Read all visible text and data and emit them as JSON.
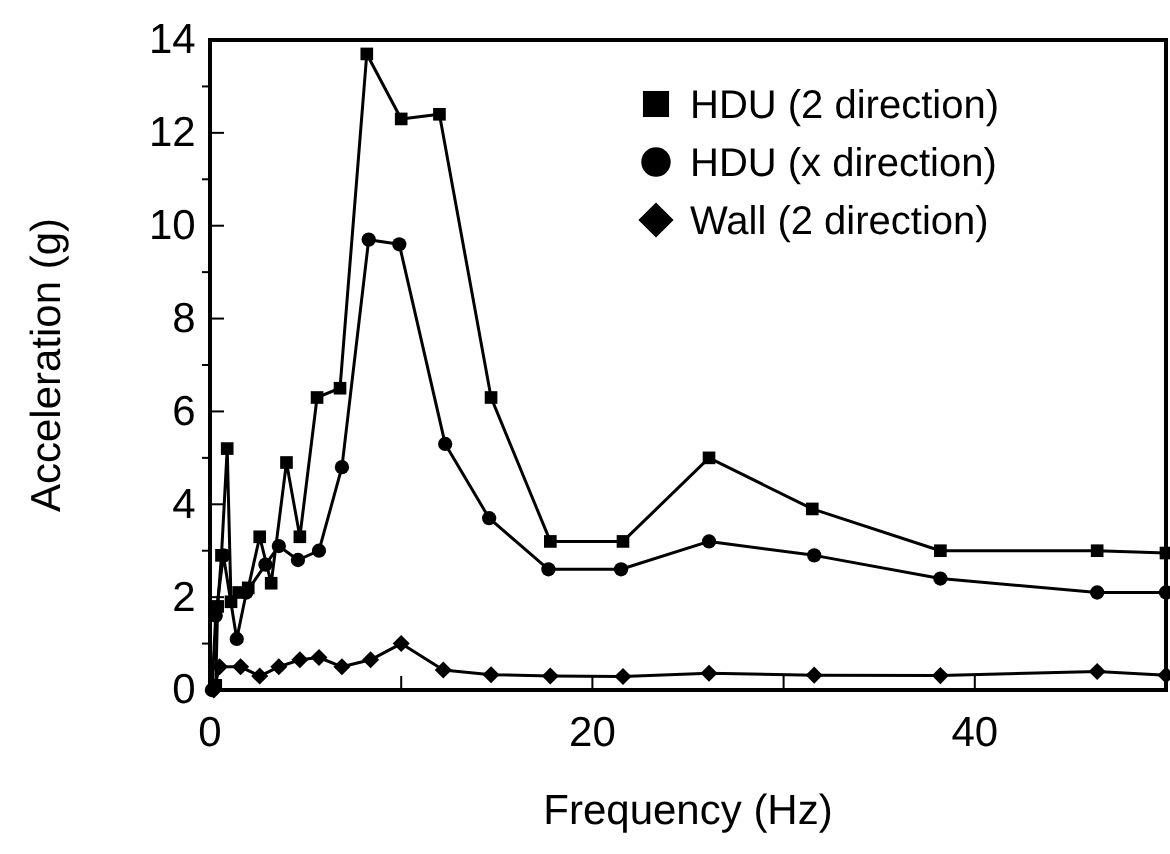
{
  "chart_data": {
    "type": "line",
    "xlabel": "Frequency (Hz)",
    "ylabel": "Acceleration (g)",
    "xlim": [
      0,
      50
    ],
    "xticks": [
      0,
      {
        "value": 10,
        "label": null
      },
      20,
      {
        "value": 30,
        "label": null
      },
      40
    ],
    "ylim": [
      0,
      14
    ],
    "yticks": [
      0,
      {
        "value": 1,
        "label": null
      },
      2,
      {
        "value": 3,
        "label": null
      },
      4,
      {
        "value": 5,
        "label": null
      },
      6,
      {
        "value": 7,
        "label": null
      },
      8,
      {
        "value": 9,
        "label": null
      },
      10,
      {
        "value": 11,
        "label": null
      },
      12,
      {
        "value": 13,
        "label": null
      },
      14
    ],
    "grid": false,
    "legend": "top right",
    "series": [
      {
        "name": "HDU (2 direction)",
        "color": "#000000",
        "marker": "square",
        "x": [
          0.3,
          0.4,
          0.6,
          0.9,
          1.1,
          1.5,
          2,
          2.6,
          3.2,
          4,
          4.7,
          5.6,
          6.8,
          8.2,
          10,
          12,
          14.7,
          17.8,
          21.6,
          26.1,
          31.5,
          38.2,
          46.4,
          50
        ],
        "values": [
          0.1,
          1.8,
          2.9,
          5.2,
          1.9,
          2.1,
          2.2,
          3.3,
          2.3,
          4.9,
          3.3,
          6.3,
          6.5,
          13.7,
          12.3,
          12.4,
          6.3,
          3.2,
          3.2,
          5.0,
          3.9,
          3.0,
          3.0,
          2.95
        ]
      },
      {
        "name": "HDU (x direction)",
        "color": "#000000",
        "marker": "circle",
        "x": [
          0.1,
          0.3,
          0.7,
          1.4,
          1.9,
          2.9,
          3.6,
          4.6,
          5.7,
          6.9,
          8.3,
          9.9,
          12.3,
          14.6,
          17.7,
          21.5,
          26.1,
          31.6,
          38.2,
          46.4,
          50
        ],
        "values": [
          0,
          1.6,
          2.9,
          1.1,
          2.1,
          2.7,
          3.1,
          2.8,
          3.0,
          4.8,
          9.7,
          9.6,
          5.3,
          3.7,
          2.6,
          2.6,
          3.2,
          2.9,
          2.4,
          2.1,
          2.1
        ]
      },
      {
        "name": "Wall (2 direction)",
        "color": "#000000",
        "marker": "diamond",
        "x": [
          0.2,
          0.5,
          1.6,
          2.6,
          3.6,
          4.7,
          5.7,
          6.9,
          8.4,
          10,
          12.2,
          14.7,
          17.8,
          21.6,
          26.1,
          31.6,
          38.2,
          46.4,
          50
        ],
        "values": [
          0,
          0.5,
          0.5,
          0.3,
          0.5,
          0.65,
          0.7,
          0.5,
          0.65,
          1.0,
          0.43,
          0.33,
          0.3,
          0.29,
          0.36,
          0.32,
          0.31,
          0.4,
          0.32
        ]
      }
    ]
  }
}
